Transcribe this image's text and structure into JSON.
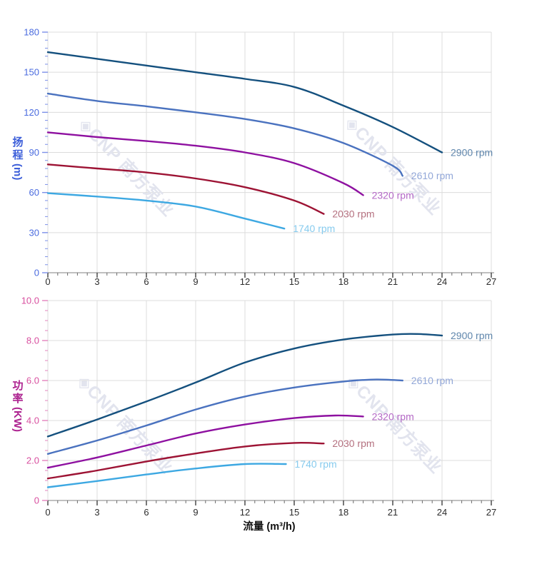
{
  "watermark": {
    "logo": "◈",
    "text": "CNP 南方泵业",
    "color": "#e2e4ee"
  },
  "chart_data": [
    {
      "type": "line",
      "title": "",
      "xlabel": "",
      "ylabel": "扬程 (m)",
      "ylabel_chars": [
        "扬",
        "程"
      ],
      "ylabel_unit": "(m)",
      "xlim": [
        0,
        27
      ],
      "ylim": [
        0,
        180
      ],
      "x_major_step": 3,
      "x_minor_step": 0.6,
      "y_major_step": 30,
      "y_minor_step": 6,
      "grid": true,
      "legend_position": "end-of-line",
      "x_tick_labels": [
        "0",
        "3",
        "6",
        "9",
        "12",
        "15",
        "18",
        "21",
        "24",
        "27"
      ],
      "y_tick_labels": [
        "0",
        "30",
        "60",
        "90",
        "120",
        "150",
        "180"
      ],
      "axis_title_color": "#3c5ed9",
      "tick_label_color": "#4a6bdf",
      "tick_mark_color": "#7c90e8",
      "series": [
        {
          "name": "2900 rpm",
          "color": "#14507e",
          "label_color": "#5f86ac",
          "points": [
            [
              0,
              165
            ],
            [
              3,
              160
            ],
            [
              6,
              155
            ],
            [
              9,
              150
            ],
            [
              12,
              145
            ],
            [
              15,
              139
            ],
            [
              18,
              125
            ],
            [
              21,
              109
            ],
            [
              24,
              90
            ]
          ]
        },
        {
          "name": "2610 rpm",
          "color": "#4a72bf",
          "label_color": "#92a7d8",
          "points": [
            [
              0,
              134
            ],
            [
              3,
              128.5
            ],
            [
              6,
              124.5
            ],
            [
              9,
              120
            ],
            [
              12,
              115
            ],
            [
              15,
              108
            ],
            [
              18,
              97
            ],
            [
              21,
              80
            ],
            [
              21.6,
              72.5
            ]
          ]
        },
        {
          "name": "2320 rpm",
          "color": "#8e10a0",
          "label_color": "#b468c6",
          "points": [
            [
              0,
              105
            ],
            [
              3,
              101.5
            ],
            [
              6,
              98.5
            ],
            [
              9,
              95
            ],
            [
              12,
              90
            ],
            [
              15,
              82
            ],
            [
              18,
              67
            ],
            [
              19.2,
              58
            ]
          ]
        },
        {
          "name": "2030 rpm",
          "color": "#9d1334",
          "label_color": "#b4707f",
          "points": [
            [
              0,
              81
            ],
            [
              3,
              78
            ],
            [
              6,
              75
            ],
            [
              9,
              70.5
            ],
            [
              12,
              64
            ],
            [
              15,
              54
            ],
            [
              16.8,
              44
            ]
          ]
        },
        {
          "name": "1740 rpm",
          "color": "#3da8e2",
          "label_color": "#87cbee",
          "points": [
            [
              0,
              59.5
            ],
            [
              3,
              57
            ],
            [
              6,
              54
            ],
            [
              9,
              49.5
            ],
            [
              12,
              40.5
            ],
            [
              14.4,
              33
            ]
          ]
        }
      ]
    },
    {
      "type": "line",
      "title": "",
      "xlabel": "流量 (m³/h)",
      "ylabel": "功率 (KW)",
      "ylabel_chars": [
        "功",
        "率"
      ],
      "ylabel_unit": "(KW)",
      "xlim": [
        0,
        27
      ],
      "ylim": [
        0,
        10
      ],
      "x_major_step": 3,
      "x_minor_step": 0.6,
      "y_major_step": 2,
      "y_minor_step": 0.5,
      "grid": true,
      "legend_position": "end-of-line",
      "x_tick_labels": [
        "0",
        "3",
        "6",
        "9",
        "12",
        "15",
        "18",
        "21",
        "24",
        "27"
      ],
      "y_tick_labels": [
        "0",
        "2.0",
        "4.0",
        "6.0",
        "8.0",
        "10.0"
      ],
      "axis_title_color": "#ad2390",
      "tick_label_color": "#d84f9f",
      "tick_mark_color": "#e383bd",
      "series": [
        {
          "name": "2900 rpm",
          "color": "#14507e",
          "label_color": "#5f86ac",
          "points": [
            [
              0,
              3.2
            ],
            [
              3,
              4.05
            ],
            [
              6,
              4.95
            ],
            [
              9,
              5.9
            ],
            [
              12,
              6.9
            ],
            [
              15,
              7.6
            ],
            [
              18,
              8.05
            ],
            [
              21,
              8.3
            ],
            [
              22.5,
              8.33
            ],
            [
              24,
              8.25
            ]
          ]
        },
        {
          "name": "2610 rpm",
          "color": "#4a72bf",
          "label_color": "#92a7d8",
          "points": [
            [
              0,
              2.33
            ],
            [
              3,
              3.0
            ],
            [
              6,
              3.75
            ],
            [
              9,
              4.55
            ],
            [
              12,
              5.2
            ],
            [
              15,
              5.65
            ],
            [
              18,
              5.95
            ],
            [
              20,
              6.05
            ],
            [
              21.6,
              6.0
            ]
          ]
        },
        {
          "name": "2320 rpm",
          "color": "#8e10a0",
          "label_color": "#b468c6",
          "points": [
            [
              0,
              1.64
            ],
            [
              3,
              2.15
            ],
            [
              6,
              2.75
            ],
            [
              9,
              3.35
            ],
            [
              12,
              3.8
            ],
            [
              15,
              4.12
            ],
            [
              17.5,
              4.25
            ],
            [
              19.2,
              4.2
            ]
          ]
        },
        {
          "name": "2030 rpm",
          "color": "#9d1334",
          "label_color": "#b4707f",
          "points": [
            [
              0,
              1.1
            ],
            [
              3,
              1.5
            ],
            [
              6,
              1.95
            ],
            [
              9,
              2.35
            ],
            [
              12,
              2.7
            ],
            [
              15,
              2.88
            ],
            [
              16.8,
              2.85
            ]
          ]
        },
        {
          "name": "1740 rpm",
          "color": "#3da8e2",
          "label_color": "#87cbee",
          "points": [
            [
              0,
              0.66
            ],
            [
              3,
              0.97
            ],
            [
              6,
              1.3
            ],
            [
              9,
              1.6
            ],
            [
              12,
              1.82
            ],
            [
              14.5,
              1.82
            ]
          ]
        }
      ]
    }
  ]
}
